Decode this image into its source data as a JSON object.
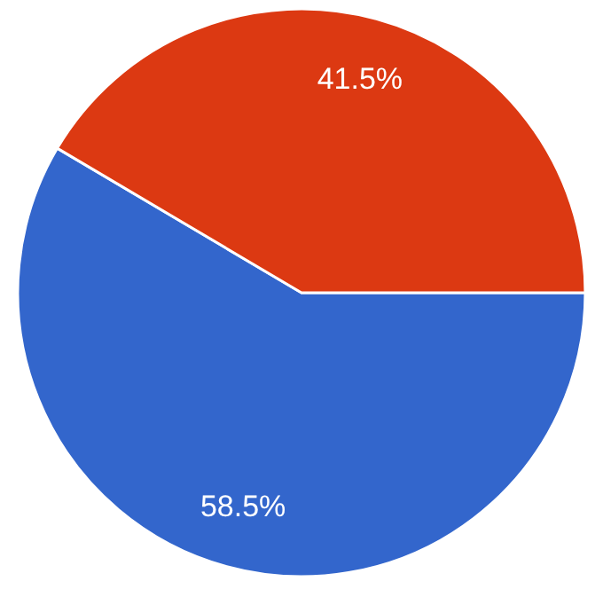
{
  "chart_data": {
    "type": "pie",
    "categories": [
      null,
      null
    ],
    "values": [
      58.5,
      41.5
    ],
    "colors": [
      "#3366cc",
      "#dc3912"
    ],
    "value_labels": [
      "58.5%",
      "41.5%"
    ]
  }
}
